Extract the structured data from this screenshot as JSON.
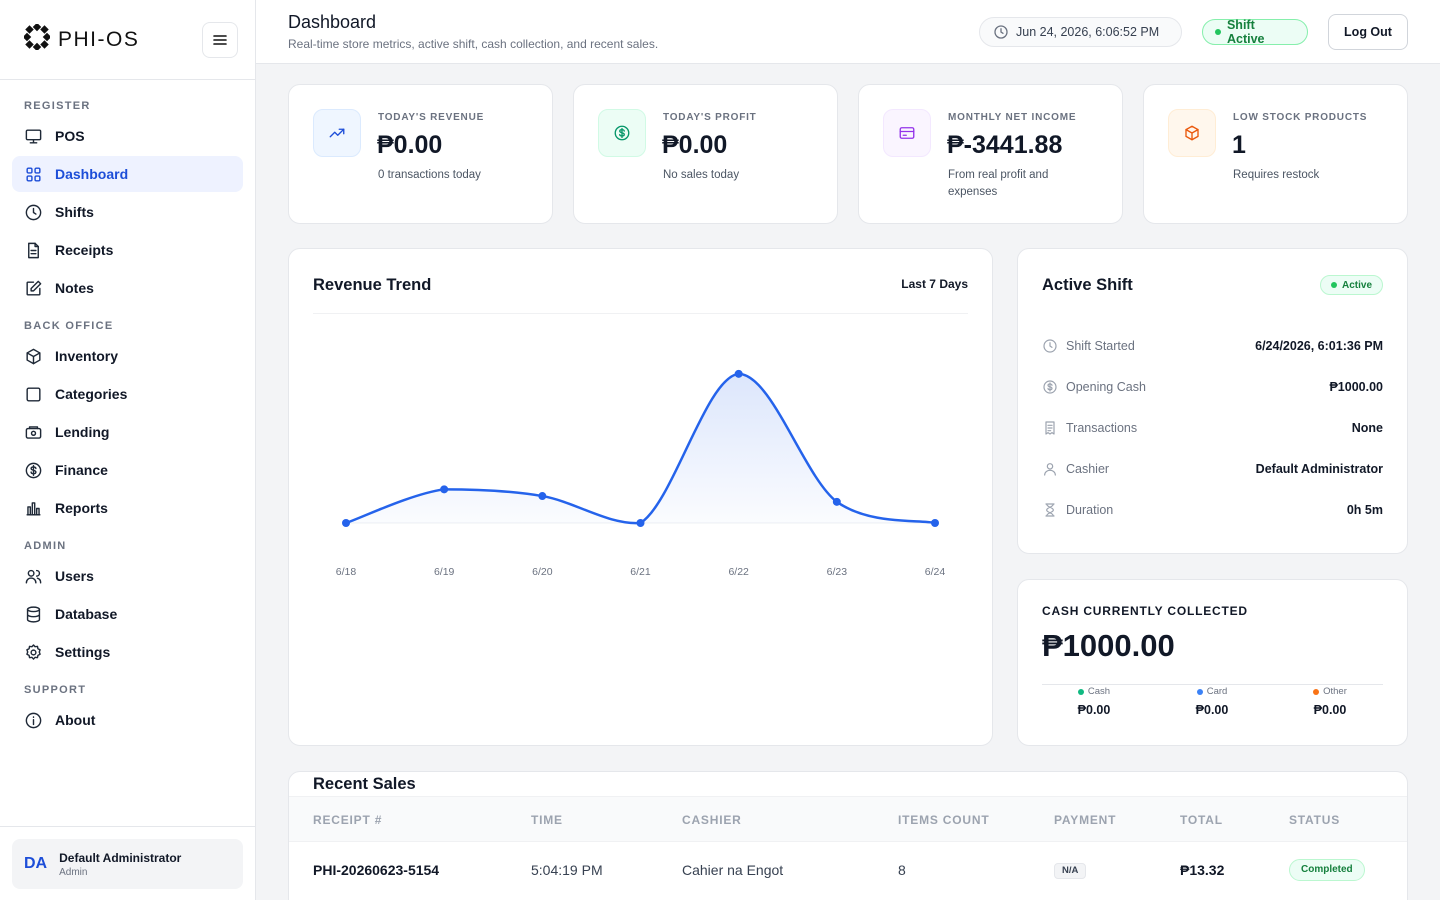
{
  "brand": {
    "name": "PHI-OS"
  },
  "sidebar": {
    "sections": [
      {
        "title": "REGISTER",
        "items": [
          {
            "label": "POS",
            "icon": "monitor-icon",
            "active": false
          },
          {
            "label": "Dashboard",
            "icon": "grid-icon",
            "active": true
          },
          {
            "label": "Shifts",
            "icon": "clock-icon",
            "active": false
          },
          {
            "label": "Receipts",
            "icon": "file-icon",
            "active": false
          },
          {
            "label": "Notes",
            "icon": "edit-icon",
            "active": false
          }
        ]
      },
      {
        "title": "BACK OFFICE",
        "items": [
          {
            "label": "Inventory",
            "icon": "box-icon",
            "active": false
          },
          {
            "label": "Categories",
            "icon": "square-icon",
            "active": false
          },
          {
            "label": "Lending",
            "icon": "wallet-icon",
            "active": false
          },
          {
            "label": "Finance",
            "icon": "dollar-circle-icon",
            "active": false
          },
          {
            "label": "Reports",
            "icon": "bar-chart-icon",
            "active": false
          }
        ]
      },
      {
        "title": "ADMIN",
        "items": [
          {
            "label": "Users",
            "icon": "users-icon",
            "active": false
          },
          {
            "label": "Database",
            "icon": "database-icon",
            "active": false
          },
          {
            "label": "Settings",
            "icon": "gear-icon",
            "active": false
          }
        ]
      },
      {
        "title": "SUPPORT",
        "items": [
          {
            "label": "About",
            "icon": "info-icon",
            "active": false
          }
        ]
      }
    ],
    "user": {
      "initials": "DA",
      "name": "Default Administrator",
      "role": "Admin"
    }
  },
  "header": {
    "title": "Dashboard",
    "subtitle": "Real-time store metrics, active shift, cash collection, and recent sales.",
    "datetime": "Jun 24, 2026, 6:06:52 PM",
    "shift_status": "Shift Active",
    "logout_label": "Log Out"
  },
  "stats": [
    {
      "label": "TODAY'S REVENUE",
      "value": "₱0.00",
      "sub": "0 transactions today",
      "icon": "trending-up-icon",
      "color": "#1d4ed8",
      "bg": "#eff6ff",
      "border": "#dbeafe"
    },
    {
      "label": "TODAY'S PROFIT",
      "value": "₱0.00",
      "sub": "No sales today",
      "icon": "dollar-circle-icon",
      "color": "#059669",
      "bg": "#ecfdf5",
      "border": "#d1fae5"
    },
    {
      "label": "MONTHLY NET INCOME",
      "value": "₱-3441.88",
      "sub": "From real profit and expenses",
      "icon": "credit-card-icon",
      "color": "#9333ea",
      "bg": "#faf5ff",
      "border": "#f3e8ff"
    },
    {
      "label": "LOW STOCK PRODUCTS",
      "value": "1",
      "sub": "Requires restock",
      "icon": "package-icon",
      "color": "#ea580c",
      "bg": "#fff7ed",
      "border": "#ffedd5"
    }
  ],
  "revenue_trend": {
    "title": "Revenue Trend",
    "range_label": "Last 7 Days"
  },
  "chart_data": {
    "type": "line",
    "categories": [
      "6/18",
      "6/19",
      "6/20",
      "6/21",
      "6/22",
      "6/23",
      "6/24"
    ],
    "values": [
      0,
      35,
      28,
      0,
      155,
      22,
      0
    ],
    "ylim": [
      0,
      160
    ],
    "grid": false,
    "line_color": "#2563eb"
  },
  "active_shift": {
    "title": "Active Shift",
    "badge": "Active",
    "rows": [
      {
        "label": "Shift Started",
        "value": "6/24/2026, 6:01:36 PM",
        "icon": "clock-icon"
      },
      {
        "label": "Opening Cash",
        "value": "₱1000.00",
        "icon": "dollar-circle-icon"
      },
      {
        "label": "Transactions",
        "value": "None",
        "icon": "receipt-icon"
      },
      {
        "label": "Cashier",
        "value": "Default Administrator",
        "icon": "user-icon"
      },
      {
        "label": "Duration",
        "value": "0h 5m",
        "icon": "hourglass-icon"
      }
    ]
  },
  "cash": {
    "label": "CASH CURRENTLY COLLECTED",
    "total": "₱1000.00",
    "methods": [
      {
        "label": "Cash",
        "value": "₱0.00",
        "color": "#10b981"
      },
      {
        "label": "Card",
        "value": "₱0.00",
        "color": "#3b82f6"
      },
      {
        "label": "Other",
        "value": "₱0.00",
        "color": "#f97316"
      }
    ]
  },
  "recent_sales": {
    "title": "Recent Sales",
    "columns": [
      "RECEIPT #",
      "TIME",
      "CASHIER",
      "ITEMS COUNT",
      "PAYMENT",
      "TOTAL",
      "STATUS"
    ],
    "rows": [
      {
        "receipt": "PHI-20260623-5154",
        "time": "5:04:19 PM",
        "cashier": "Cahier na Engot",
        "items": "8",
        "payment": "N/A",
        "total": "₱13.32",
        "status": "Completed"
      }
    ]
  }
}
